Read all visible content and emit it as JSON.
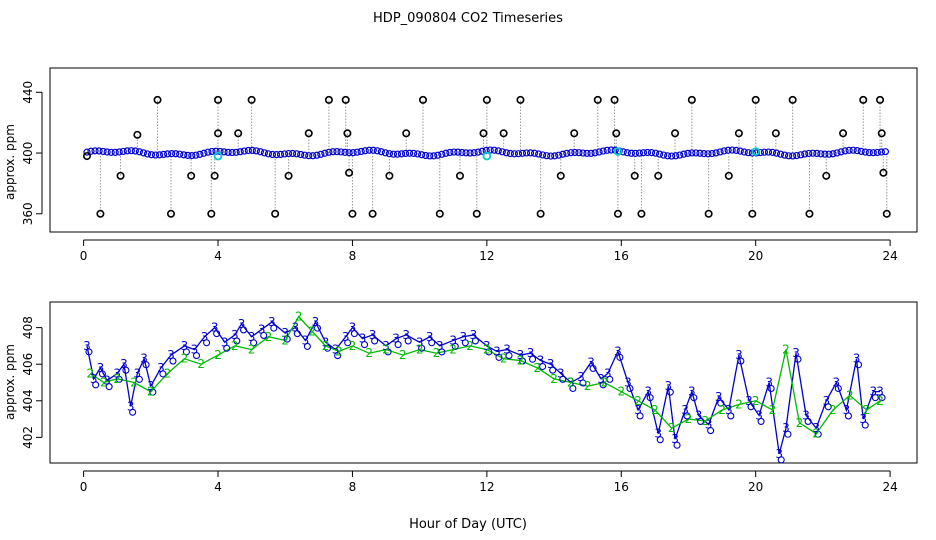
{
  "chart_data": {
    "title": "HDP_090804  CO2 Timeseries",
    "xlabel": "Hour of Day (UTC)",
    "colors": {
      "blue": "#0000cc",
      "green": "#00bb00",
      "cyan": "#00cccc",
      "black": "#000000",
      "gray": "#999999"
    },
    "panels": [
      {
        "type": "scatter",
        "name": "top-panel",
        "ylabel": "approx. ppm",
        "xlim": [
          -1,
          24.8
        ],
        "ylim": [
          348,
          456
        ],
        "xticks": [
          0,
          4,
          8,
          12,
          16,
          20,
          24
        ],
        "yticks": [
          360,
          400,
          440
        ],
        "series": [
          {
            "name": "raw-open-circles",
            "style": "black-open-circle",
            "values": [
              [
                0.1,
                398
              ],
              [
                0.5,
                360
              ],
              [
                1.1,
                385
              ],
              [
                1.6,
                412
              ],
              [
                2.2,
                435
              ],
              [
                2.6,
                360
              ],
              [
                3.2,
                385
              ],
              [
                3.8,
                360
              ],
              [
                3.9,
                385
              ],
              [
                4.0,
                435
              ],
              [
                4.0,
                413
              ],
              [
                4.6,
                413
              ],
              [
                5.0,
                435
              ],
              [
                5.7,
                360
              ],
              [
                6.1,
                385
              ],
              [
                6.7,
                413
              ],
              [
                7.3,
                435
              ],
              [
                7.8,
                435
              ],
              [
                7.85,
                413
              ],
              [
                7.9,
                387
              ],
              [
                8.0,
                360
              ],
              [
                8.6,
                360
              ],
              [
                9.1,
                385
              ],
              [
                9.6,
                413
              ],
              [
                10.1,
                435
              ],
              [
                10.6,
                360
              ],
              [
                11.2,
                385
              ],
              [
                11.7,
                360
              ],
              [
                11.9,
                413
              ],
              [
                12.0,
                435
              ],
              [
                12.5,
                413
              ],
              [
                13.0,
                435
              ],
              [
                13.6,
                360
              ],
              [
                14.2,
                385
              ],
              [
                14.6,
                413
              ],
              [
                15.3,
                435
              ],
              [
                15.8,
                435
              ],
              [
                15.85,
                413
              ],
              [
                15.9,
                360
              ],
              [
                16.4,
                385
              ],
              [
                16.6,
                360
              ],
              [
                17.1,
                385
              ],
              [
                17.6,
                413
              ],
              [
                18.1,
                435
              ],
              [
                18.6,
                360
              ],
              [
                19.2,
                385
              ],
              [
                19.5,
                413
              ],
              [
                19.9,
                360
              ],
              [
                20.0,
                435
              ],
              [
                20.6,
                413
              ],
              [
                21.1,
                435
              ],
              [
                21.6,
                360
              ],
              [
                22.1,
                385
              ],
              [
                22.6,
                413
              ],
              [
                23.2,
                435
              ],
              [
                23.7,
                435
              ],
              [
                23.75,
                413
              ],
              [
                23.8,
                387
              ],
              [
                23.9,
                360
              ]
            ]
          },
          {
            "name": "flagged-cyan-points",
            "style": "cyan-circle",
            "values": [
              [
                4.0,
                398
              ],
              [
                12.0,
                398
              ],
              [
                15.9,
                401
              ],
              [
                20.0,
                401
              ]
            ]
          }
        ]
      },
      {
        "type": "line",
        "name": "bottom-panel",
        "ylabel": "approx. ppm",
        "xlim": [
          -1,
          24.8
        ],
        "ylim": [
          400.6,
          409.4
        ],
        "xticks": [
          0,
          4,
          8,
          12,
          16,
          20,
          24
        ],
        "yticks": [
          402,
          404,
          406,
          408
        ],
        "series": [
          {
            "name": "sensor-3",
            "marker": "3",
            "values": [
              [
                0.1,
                407
              ],
              [
                0.3,
                405.2
              ],
              [
                0.5,
                405.8
              ],
              [
                0.7,
                405.1
              ],
              [
                1.0,
                405.5
              ],
              [
                1.2,
                406.0
              ],
              [
                1.4,
                403.7
              ],
              [
                1.6,
                405.5
              ],
              [
                1.8,
                406.3
              ],
              [
                2.0,
                404.8
              ],
              [
                2.3,
                405.8
              ],
              [
                2.6,
                406.5
              ],
              [
                3.0,
                407.0
              ],
              [
                3.3,
                406.8
              ],
              [
                3.6,
                407.5
              ],
              [
                3.9,
                408.0
              ],
              [
                4.2,
                407.2
              ],
              [
                4.5,
                407.6
              ],
              [
                4.7,
                408.2
              ],
              [
                5.0,
                407.5
              ],
              [
                5.3,
                407.9
              ],
              [
                5.6,
                408.3
              ],
              [
                6.0,
                407.7
              ],
              [
                6.3,
                408.0
              ],
              [
                6.6,
                407.3
              ],
              [
                6.9,
                408.3
              ],
              [
                7.2,
                407.2
              ],
              [
                7.5,
                406.8
              ],
              [
                7.8,
                407.5
              ],
              [
                8.0,
                408.0
              ],
              [
                8.3,
                407.4
              ],
              [
                8.6,
                407.6
              ],
              [
                9.0,
                407.0
              ],
              [
                9.3,
                407.4
              ],
              [
                9.6,
                407.6
              ],
              [
                10.0,
                407.2
              ],
              [
                10.3,
                407.5
              ],
              [
                10.6,
                407.0
              ],
              [
                11.0,
                407.3
              ],
              [
                11.3,
                407.5
              ],
              [
                11.6,
                407.6
              ],
              [
                12.0,
                407.0
              ],
              [
                12.3,
                406.7
              ],
              [
                12.6,
                406.8
              ],
              [
                13.0,
                406.5
              ],
              [
                13.3,
                406.6
              ],
              [
                13.6,
                406.2
              ],
              [
                13.9,
                406.0
              ],
              [
                14.2,
                405.5
              ],
              [
                14.5,
                405.0
              ],
              [
                14.8,
                405.3
              ],
              [
                15.1,
                406.1
              ],
              [
                15.4,
                405.2
              ],
              [
                15.6,
                405.5
              ],
              [
                15.9,
                406.7
              ],
              [
                16.2,
                405.0
              ],
              [
                16.5,
                403.5
              ],
              [
                16.8,
                404.5
              ],
              [
                17.1,
                402.2
              ],
              [
                17.4,
                404.8
              ],
              [
                17.6,
                401.9
              ],
              [
                17.9,
                403.5
              ],
              [
                18.1,
                404.5
              ],
              [
                18.3,
                403.2
              ],
              [
                18.6,
                402.7
              ],
              [
                18.9,
                404.2
              ],
              [
                19.2,
                403.5
              ],
              [
                19.5,
                406.5
              ],
              [
                19.8,
                404.0
              ],
              [
                20.1,
                403.2
              ],
              [
                20.4,
                405.0
              ],
              [
                20.7,
                401.1
              ],
              [
                20.9,
                402.5
              ],
              [
                21.2,
                406.6
              ],
              [
                21.5,
                403.2
              ],
              [
                21.8,
                402.5
              ],
              [
                22.1,
                404.0
              ],
              [
                22.4,
                405.0
              ],
              [
                22.7,
                403.5
              ],
              [
                23.0,
                406.3
              ],
              [
                23.2,
                403.0
              ],
              [
                23.5,
                404.5
              ],
              [
                23.7,
                404.5
              ]
            ]
          },
          {
            "name": "sensor-2",
            "marker": "2",
            "values": [
              [
                0.2,
                405.5
              ],
              [
                0.6,
                405.0
              ],
              [
                1.0,
                405.2
              ],
              [
                1.5,
                405.0
              ],
              [
                2.0,
                404.5
              ],
              [
                2.5,
                405.5
              ],
              [
                3.0,
                406.3
              ],
              [
                3.5,
                406.0
              ],
              [
                4.0,
                406.5
              ],
              [
                4.5,
                407.0
              ],
              [
                5.0,
                406.8
              ],
              [
                5.5,
                407.5
              ],
              [
                6.0,
                407.3
              ],
              [
                6.4,
                408.6
              ],
              [
                6.8,
                407.8
              ],
              [
                7.2,
                407.0
              ],
              [
                7.6,
                406.7
              ],
              [
                8.0,
                407.0
              ],
              [
                8.5,
                406.6
              ],
              [
                9.0,
                406.8
              ],
              [
                9.5,
                406.5
              ],
              [
                10.0,
                406.8
              ],
              [
                10.5,
                406.6
              ],
              [
                11.0,
                406.8
              ],
              [
                11.5,
                407.0
              ],
              [
                12.0,
                406.8
              ],
              [
                12.5,
                406.3
              ],
              [
                13.0,
                406.2
              ],
              [
                13.5,
                405.8
              ],
              [
                14.0,
                405.2
              ],
              [
                14.5,
                405.0
              ],
              [
                15.0,
                404.8
              ],
              [
                15.5,
                405.0
              ],
              [
                16.0,
                404.5
              ],
              [
                16.5,
                404.0
              ],
              [
                17.0,
                403.5
              ],
              [
                17.5,
                402.5
              ],
              [
                18.0,
                403.0
              ],
              [
                18.5,
                402.9
              ],
              [
                19.0,
                403.5
              ],
              [
                19.5,
                403.8
              ],
              [
                20.0,
                404.0
              ],
              [
                20.5,
                403.5
              ],
              [
                20.9,
                406.8
              ],
              [
                21.3,
                402.8
              ],
              [
                21.8,
                402.2
              ],
              [
                22.3,
                403.5
              ],
              [
                22.8,
                404.3
              ],
              [
                23.3,
                403.5
              ],
              [
                23.7,
                404.0
              ]
            ]
          }
        ]
      }
    ]
  }
}
